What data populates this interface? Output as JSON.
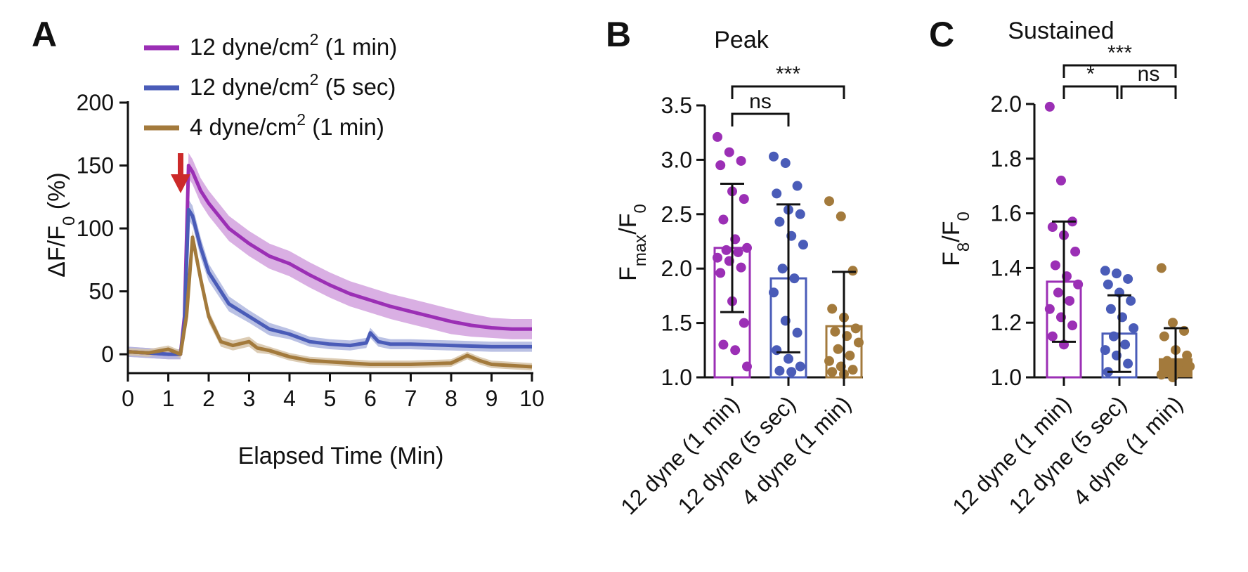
{
  "colors": {
    "purple": "#9b2fb5",
    "blue": "#4a5cb8",
    "gold": "#a37a3c",
    "arrow": "#cc2a2a",
    "axis": "#111111"
  },
  "chart_data": [
    {
      "panel": "A",
      "type": "line",
      "title": "",
      "xlabel": "Elapsed Time (Min)",
      "ylabel": "ΔF/F0 (%)",
      "xlim": [
        0,
        10
      ],
      "ylim": [
        -15,
        200
      ],
      "xticks": [
        "0",
        "1",
        "2",
        "3",
        "4",
        "5",
        "6",
        "7",
        "8",
        "9",
        "10"
      ],
      "yticks": [
        "0",
        "50",
        "100",
        "150",
        "200"
      ],
      "annotation": "red arrow at ~1.2 min (stimulus onset)",
      "series": [
        {
          "name": "12 dyne/cm2 (1 min)",
          "color": "purple",
          "x": [
            0,
            0.5,
            1.0,
            1.3,
            1.4,
            1.5,
            1.6,
            1.8,
            2.0,
            2.5,
            3.0,
            3.5,
            4.0,
            4.5,
            5.0,
            5.5,
            6.0,
            6.5,
            7.0,
            7.5,
            8.0,
            8.5,
            9.0,
            9.5,
            10.0
          ],
          "y": [
            2,
            1,
            0,
            0,
            30,
            150,
            145,
            130,
            120,
            100,
            88,
            78,
            72,
            63,
            55,
            48,
            43,
            38,
            34,
            30,
            26,
            23,
            21,
            20,
            20
          ],
          "band": [
            4,
            4,
            4,
            4,
            8,
            10,
            10,
            10,
            10,
            10,
            10,
            10,
            10,
            10,
            10,
            10,
            10,
            10,
            10,
            10,
            10,
            9,
            8,
            8,
            8
          ]
        },
        {
          "name": "12 dyne/cm2 (5 sec)",
          "color": "blue",
          "x": [
            0,
            0.5,
            1.0,
            1.3,
            1.4,
            1.5,
            1.6,
            1.8,
            2.0,
            2.5,
            3.0,
            3.5,
            4.0,
            4.5,
            5.0,
            5.5,
            5.9,
            6.0,
            6.2,
            6.5,
            7.0,
            8.0,
            9.0,
            10.0
          ],
          "y": [
            2,
            1,
            0,
            0,
            25,
            115,
            110,
            85,
            65,
            40,
            30,
            20,
            16,
            10,
            8,
            7,
            9,
            17,
            10,
            8,
            8,
            7,
            6,
            6
          ],
          "band": [
            4,
            4,
            4,
            4,
            6,
            8,
            8,
            8,
            7,
            6,
            5,
            5,
            4,
            4,
            4,
            4,
            4,
            4,
            4,
            4,
            4,
            4,
            4,
            4
          ]
        },
        {
          "name": "4 dyne/cm2 (1 min)",
          "color": "gold",
          "x": [
            0,
            0.5,
            1.0,
            1.3,
            1.45,
            1.6,
            1.8,
            2.0,
            2.3,
            2.6,
            3.0,
            3.2,
            3.5,
            4.0,
            4.5,
            5.0,
            6.0,
            7.0,
            8.0,
            8.4,
            8.7,
            9.0,
            10.0
          ],
          "y": [
            2,
            1,
            4,
            0,
            30,
            93,
            60,
            30,
            10,
            7,
            10,
            5,
            3,
            -2,
            -5,
            -6,
            -8,
            -8,
            -7,
            -1,
            -5,
            -8,
            -10
          ],
          "band": [
            3,
            3,
            3,
            3,
            5,
            6,
            6,
            5,
            4,
            4,
            4,
            4,
            3,
            3,
            3,
            3,
            3,
            3,
            3,
            3,
            3,
            3,
            3
          ]
        }
      ],
      "legend": [
        "12 dyne/cm2 (1 min)",
        "12 dyne/cm2 (5 sec)",
        "4 dyne/cm2 (1 min)"
      ],
      "legend_placement": "top"
    },
    {
      "panel": "B",
      "type": "bar",
      "title": "Peak",
      "xlabel": "",
      "ylabel": "Fmax/F0",
      "ylim": [
        1.0,
        3.5
      ],
      "yticks": [
        "1.0",
        "1.5",
        "2.0",
        "2.5",
        "3.0",
        "3.5"
      ],
      "categories": [
        "12 dyne (1 min)",
        "12 dyne (5 sec)",
        "4 dyne (1 min)"
      ],
      "values": [
        2.19,
        1.91,
        1.47
      ],
      "sd": [
        0.59,
        0.68,
        0.5
      ],
      "colors": [
        "purple",
        "blue",
        "gold"
      ],
      "points": [
        [
          3.21,
          3.07,
          2.99,
          2.95,
          2.71,
          2.64,
          2.45,
          2.27,
          2.19,
          2.17,
          2.15,
          2.1,
          2.07,
          2.01,
          1.96,
          1.7,
          1.5,
          1.3,
          1.25,
          1.1
        ],
        [
          3.03,
          2.97,
          2.76,
          2.69,
          2.54,
          2.5,
          2.43,
          2.3,
          2.22,
          2.0,
          1.91,
          1.78,
          1.52,
          1.41,
          1.25,
          1.17,
          1.1,
          1.06,
          1.05
        ],
        [
          2.62,
          2.48,
          1.98,
          1.63,
          1.55,
          1.45,
          1.42,
          1.38,
          1.32,
          1.26,
          1.2,
          1.15,
          1.1,
          1.07,
          1.05,
          1.03
        ]
      ],
      "significance": [
        {
          "from": 0,
          "to": 1,
          "label": "ns"
        },
        {
          "from": 0,
          "to": 2,
          "label": "***"
        }
      ]
    },
    {
      "panel": "C",
      "type": "bar",
      "title": "Sustained",
      "xlabel": "",
      "ylabel": "F8/F0",
      "ylim": [
        1.0,
        2.0
      ],
      "yticks": [
        "1.0",
        "1.2",
        "1.4",
        "1.6",
        "1.8",
        "2.0"
      ],
      "categories": [
        "12 dyne (1 min)",
        "12 dyne (5 sec)",
        "4 dyne (1 min)"
      ],
      "values": [
        1.35,
        1.16,
        1.07
      ],
      "sd": [
        0.22,
        0.14,
        0.11
      ],
      "colors": [
        "purple",
        "blue",
        "gold"
      ],
      "points": [
        [
          1.99,
          1.72,
          1.57,
          1.55,
          1.52,
          1.46,
          1.41,
          1.37,
          1.34,
          1.31,
          1.28,
          1.25,
          1.22,
          1.19,
          1.15,
          1.12
        ],
        [
          1.39,
          1.38,
          1.36,
          1.34,
          1.31,
          1.28,
          1.25,
          1.22,
          1.18,
          1.15,
          1.12,
          1.1,
          1.08,
          1.05,
          1.02
        ],
        [
          1.4,
          1.2,
          1.17,
          1.15,
          1.1,
          1.08,
          1.06,
          1.05,
          1.04,
          1.03,
          1.02,
          1.01,
          1.0
        ]
      ],
      "significance": [
        {
          "from": 0,
          "to": 1,
          "label": "*"
        },
        {
          "from": 1,
          "to": 2,
          "label": "ns"
        },
        {
          "from": 0,
          "to": 2,
          "label": "***"
        }
      ]
    }
  ],
  "labels": {
    "panel_a": "A",
    "panel_b": "B",
    "panel_c": "C",
    "a_ylabel_main": "ΔF/F",
    "a_ylabel_sub": "0",
    "a_ylabel_tail": " (%)",
    "a_xlabel": "Elapsed Time (Min)",
    "legend": [
      {
        "pre": "12 dyne/cm",
        "sup": "2",
        "post": " (1 min)"
      },
      {
        "pre": "12 dyne/cm",
        "sup": "2",
        "post": " (5 sec)"
      },
      {
        "pre": "4 dyne/cm",
        "sup": "2",
        "post": " (1 min)"
      }
    ],
    "b_title": "Peak",
    "b_ylabel_main": "F",
    "b_ylabel_sub": "max",
    "b_ylabel_mid": "/F",
    "b_ylabel_sub2": "0",
    "c_title": "Sustained",
    "c_ylabel_main": "F",
    "c_ylabel_sub": "8",
    "c_ylabel_mid": "/F",
    "c_ylabel_sub2": "0"
  }
}
